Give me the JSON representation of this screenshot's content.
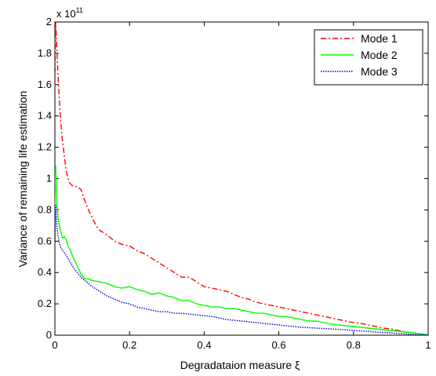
{
  "chart_data": {
    "type": "line",
    "title": "",
    "xlabel": "Degradataion measure ξ",
    "ylabel": "Variance of remaining life estimation",
    "exponent_label": "x 10",
    "exponent_power": "11",
    "xlim": [
      0,
      1
    ],
    "ylim": [
      0,
      2
    ],
    "x_ticks": [
      0,
      0.2,
      0.4,
      0.6,
      0.8,
      1
    ],
    "x_tick_labels": [
      "0",
      "0.2",
      "0.4",
      "0.6",
      "0.8",
      "1"
    ],
    "y_ticks": [
      0,
      0.2,
      0.4,
      0.6,
      0.8,
      1,
      1.2,
      1.4,
      1.6,
      1.8,
      2
    ],
    "y_tick_labels": [
      "0",
      "0.2",
      "0.4",
      "0.6",
      "0.8",
      "1",
      "1.2",
      "1.4",
      "1.6",
      "1.8",
      "2"
    ],
    "grid": false,
    "legend_position": "top-right",
    "series": [
      {
        "name": "Mode 1",
        "color": "#ff0000",
        "dash": "dash-dot",
        "x": [
          0.0,
          0.002,
          0.005,
          0.008,
          0.012,
          0.016,
          0.02,
          0.025,
          0.03,
          0.035,
          0.04,
          0.045,
          0.05,
          0.06,
          0.07,
          0.08,
          0.09,
          0.1,
          0.11,
          0.12,
          0.14,
          0.16,
          0.18,
          0.2,
          0.22,
          0.24,
          0.26,
          0.28,
          0.3,
          0.32,
          0.34,
          0.36,
          0.38,
          0.4,
          0.42,
          0.44,
          0.46,
          0.48,
          0.5,
          0.52,
          0.54,
          0.56,
          0.58,
          0.6,
          0.62,
          0.64,
          0.66,
          0.68,
          0.7,
          0.72,
          0.74,
          0.76,
          0.78,
          0.8,
          0.82,
          0.84,
          0.86,
          0.88,
          0.9,
          0.92,
          0.94,
          0.96,
          0.98,
          1.0
        ],
        "values": [
          1.6,
          2.0,
          1.85,
          1.68,
          1.5,
          1.35,
          1.25,
          1.15,
          1.05,
          1.0,
          0.97,
          0.96,
          0.95,
          0.95,
          0.93,
          0.86,
          0.8,
          0.75,
          0.7,
          0.67,
          0.64,
          0.6,
          0.58,
          0.57,
          0.54,
          0.52,
          0.49,
          0.46,
          0.43,
          0.4,
          0.37,
          0.37,
          0.34,
          0.31,
          0.3,
          0.29,
          0.28,
          0.26,
          0.24,
          0.23,
          0.21,
          0.2,
          0.19,
          0.18,
          0.17,
          0.16,
          0.15,
          0.14,
          0.13,
          0.12,
          0.11,
          0.1,
          0.09,
          0.08,
          0.075,
          0.065,
          0.055,
          0.045,
          0.04,
          0.03,
          0.02,
          0.015,
          0.008,
          0.003
        ]
      },
      {
        "name": "Mode 2",
        "color": "#00ff00",
        "dash": "solid",
        "x": [
          0.0,
          0.002,
          0.005,
          0.008,
          0.012,
          0.016,
          0.02,
          0.025,
          0.03,
          0.035,
          0.04,
          0.045,
          0.05,
          0.06,
          0.07,
          0.08,
          0.09,
          0.1,
          0.12,
          0.14,
          0.16,
          0.18,
          0.2,
          0.22,
          0.24,
          0.26,
          0.28,
          0.3,
          0.32,
          0.34,
          0.36,
          0.38,
          0.4,
          0.42,
          0.44,
          0.46,
          0.48,
          0.5,
          0.52,
          0.54,
          0.56,
          0.58,
          0.6,
          0.62,
          0.64,
          0.66,
          0.68,
          0.7,
          0.72,
          0.74,
          0.76,
          0.78,
          0.8,
          0.82,
          0.84,
          0.86,
          0.88,
          0.9,
          0.92,
          0.94,
          0.96,
          0.98,
          1.0
        ],
        "values": [
          0.8,
          1.08,
          0.85,
          0.76,
          0.7,
          0.66,
          0.62,
          0.63,
          0.61,
          0.57,
          0.55,
          0.52,
          0.49,
          0.44,
          0.39,
          0.36,
          0.36,
          0.35,
          0.34,
          0.33,
          0.31,
          0.3,
          0.31,
          0.29,
          0.28,
          0.26,
          0.27,
          0.25,
          0.24,
          0.22,
          0.22,
          0.2,
          0.19,
          0.18,
          0.18,
          0.17,
          0.17,
          0.16,
          0.15,
          0.14,
          0.14,
          0.13,
          0.12,
          0.12,
          0.11,
          0.1,
          0.09,
          0.09,
          0.08,
          0.07,
          0.065,
          0.06,
          0.055,
          0.05,
          0.045,
          0.04,
          0.035,
          0.03,
          0.025,
          0.02,
          0.015,
          0.008,
          0.003
        ]
      },
      {
        "name": "Mode 3",
        "color": "#0000cc",
        "dash": "dotted",
        "x": [
          0.0,
          0.002,
          0.005,
          0.008,
          0.012,
          0.016,
          0.02,
          0.025,
          0.03,
          0.035,
          0.04,
          0.045,
          0.05,
          0.06,
          0.07,
          0.08,
          0.09,
          0.1,
          0.12,
          0.14,
          0.16,
          0.18,
          0.2,
          0.22,
          0.24,
          0.26,
          0.28,
          0.3,
          0.32,
          0.34,
          0.36,
          0.38,
          0.4,
          0.42,
          0.44,
          0.46,
          0.48,
          0.5,
          0.52,
          0.54,
          0.56,
          0.58,
          0.6,
          0.62,
          0.64,
          0.66,
          0.68,
          0.7,
          0.72,
          0.74,
          0.76,
          0.78,
          0.8,
          0.82,
          0.84,
          0.86,
          0.88,
          0.9,
          0.92,
          0.94,
          0.96,
          0.98,
          1.0
        ],
        "values": [
          0.6,
          0.83,
          0.7,
          0.64,
          0.59,
          0.56,
          0.54,
          0.53,
          0.51,
          0.49,
          0.47,
          0.45,
          0.43,
          0.4,
          0.37,
          0.35,
          0.33,
          0.31,
          0.28,
          0.25,
          0.23,
          0.21,
          0.2,
          0.18,
          0.17,
          0.16,
          0.15,
          0.15,
          0.14,
          0.14,
          0.135,
          0.13,
          0.125,
          0.12,
          0.11,
          0.1,
          0.095,
          0.09,
          0.085,
          0.08,
          0.075,
          0.07,
          0.065,
          0.06,
          0.055,
          0.05,
          0.048,
          0.045,
          0.042,
          0.04,
          0.037,
          0.034,
          0.03,
          0.027,
          0.024,
          0.02,
          0.017,
          0.014,
          0.011,
          0.008,
          0.005,
          0.003,
          0.001
        ]
      }
    ]
  }
}
